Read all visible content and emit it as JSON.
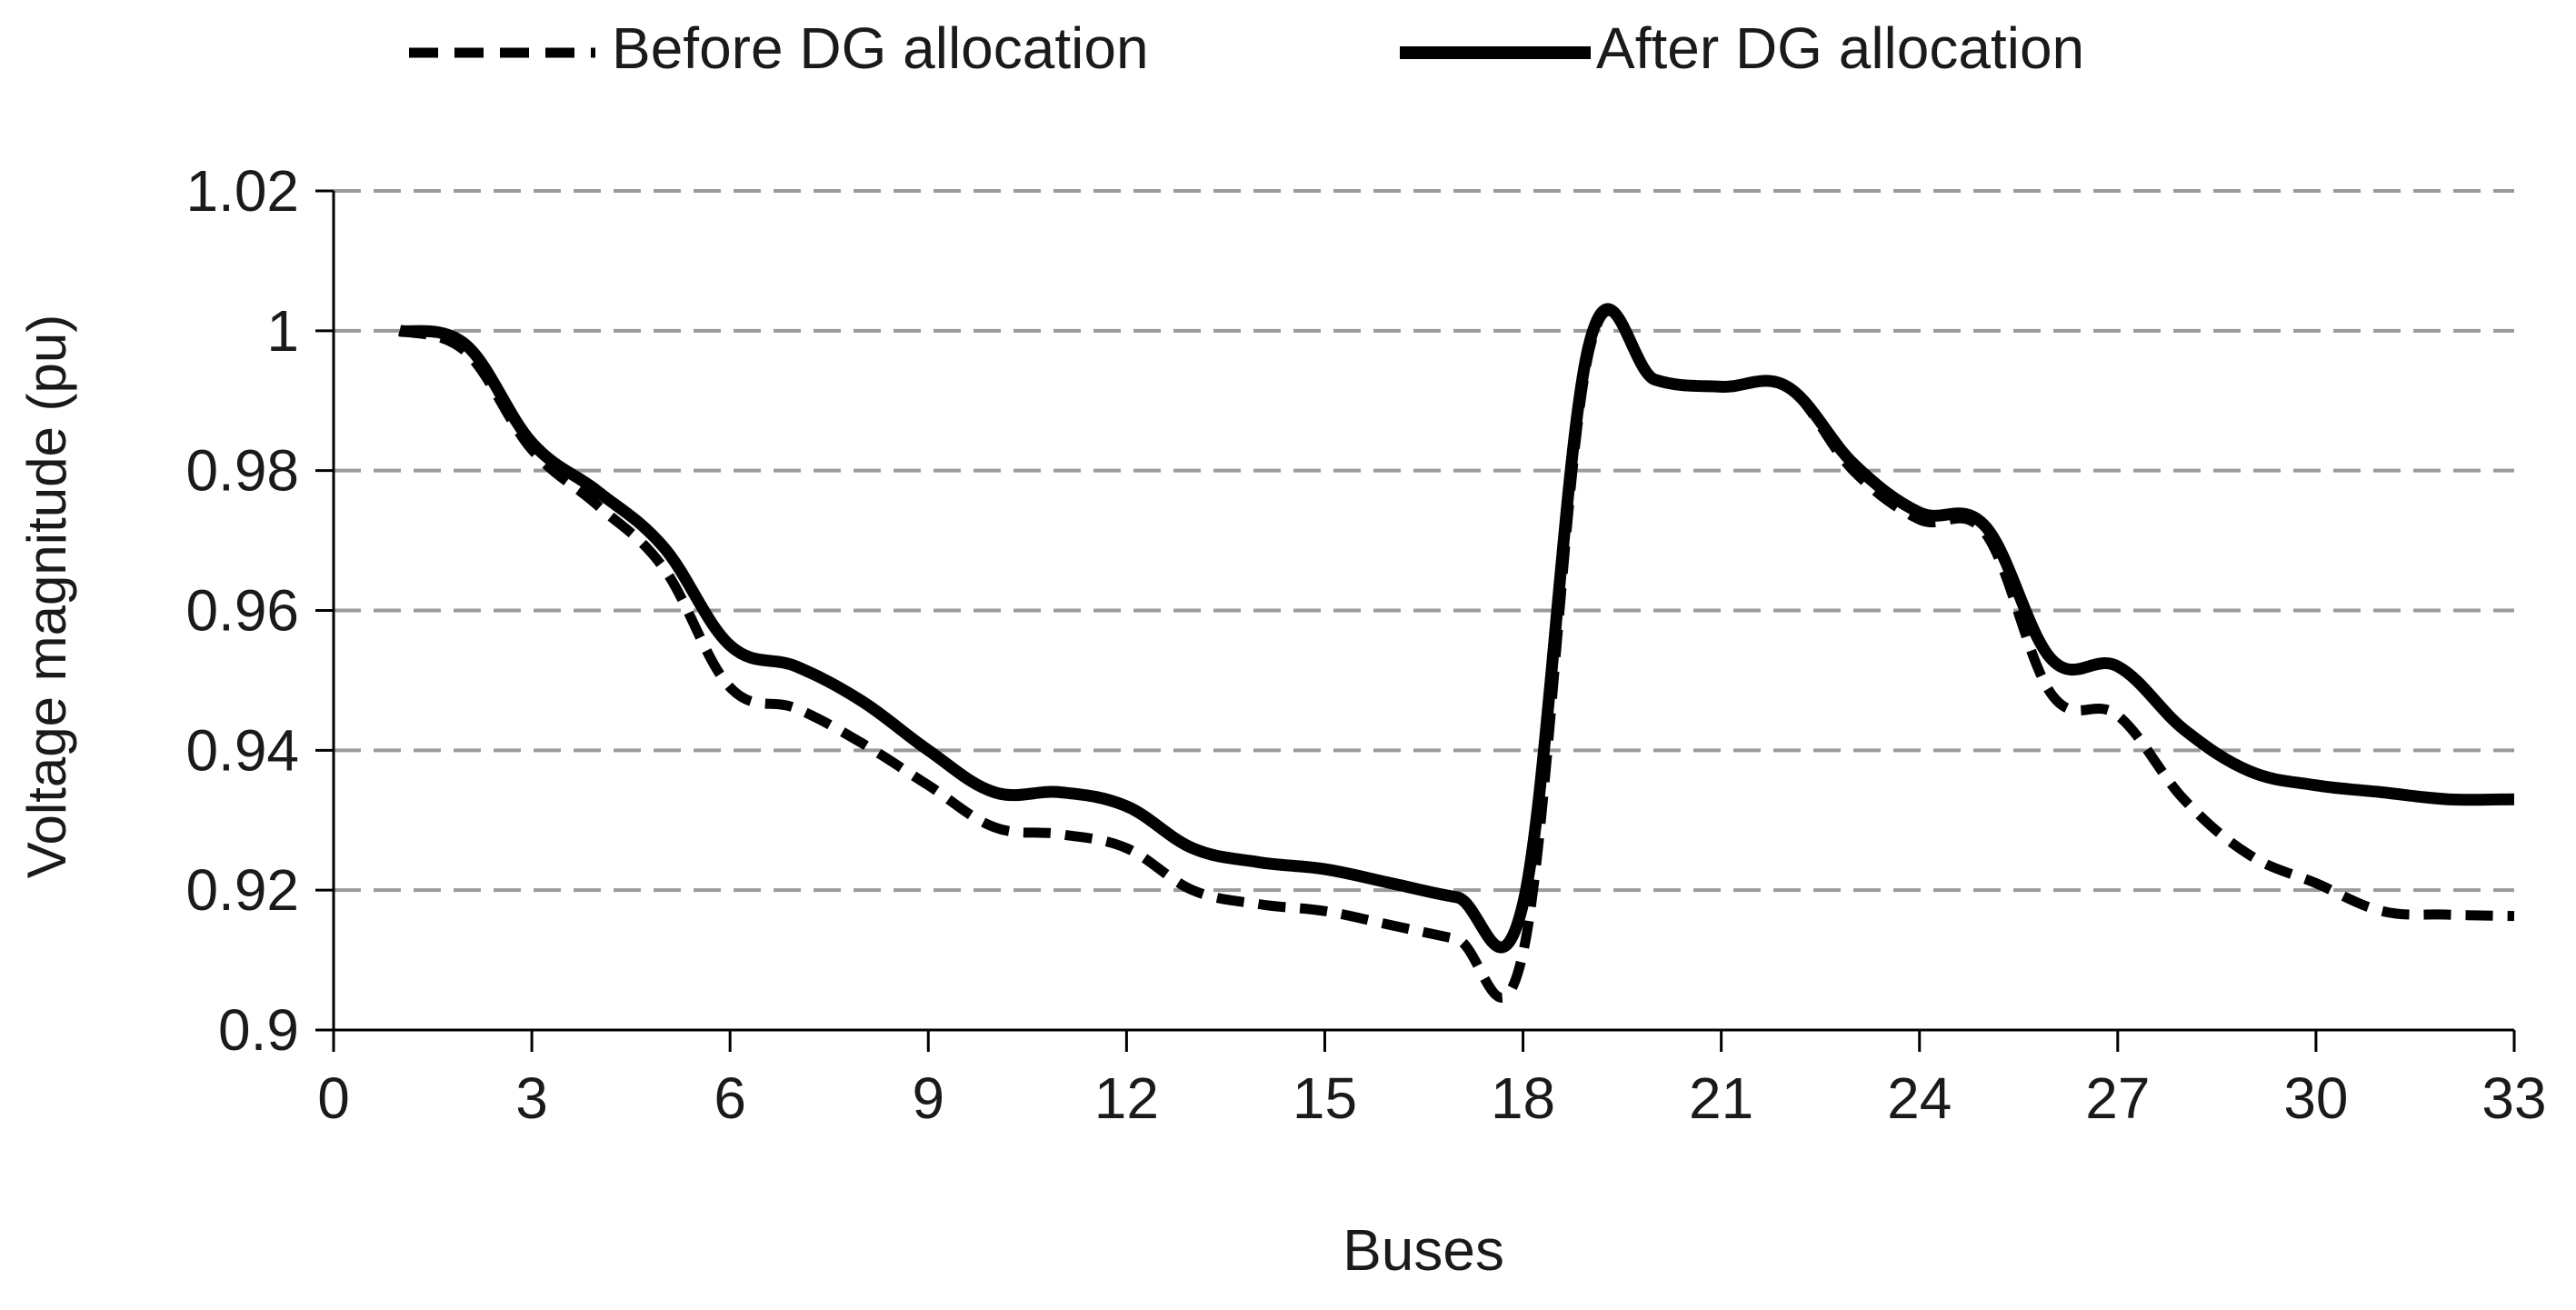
{
  "chart_data": {
    "type": "line",
    "title": "",
    "xlabel": "Buses",
    "ylabel": "Voltage magnitude (pu)",
    "xlim": [
      0,
      33
    ],
    "ylim": [
      0.9,
      1.02
    ],
    "xticks": [
      0,
      3,
      6,
      9,
      12,
      15,
      18,
      21,
      24,
      27,
      30,
      33
    ],
    "yticks": [
      0.9,
      0.92,
      0.94,
      0.96,
      0.98,
      1.0,
      1.02
    ],
    "ytick_labels": [
      "0.9",
      "0.92",
      "0.94",
      "0.96",
      "0.98",
      "1",
      "1.02"
    ],
    "grid": "horizontal-dashed",
    "legend_position": "top",
    "x": [
      1,
      2,
      3,
      4,
      5,
      6,
      7,
      8,
      9,
      10,
      11,
      12,
      13,
      14,
      15,
      16,
      17,
      18,
      19,
      20,
      21,
      22,
      23,
      24,
      25,
      26,
      27,
      28,
      29,
      30,
      31,
      32,
      33
    ],
    "series": [
      {
        "name": "Before DG allocation",
        "style": "dashed",
        "color": "#000000",
        "values": [
          1.0,
          0.997,
          0.983,
          0.975,
          0.966,
          0.949,
          0.946,
          0.941,
          0.935,
          0.929,
          0.928,
          0.926,
          0.92,
          0.918,
          0.917,
          0.915,
          0.913,
          0.911,
          0.997,
          0.993,
          0.992,
          0.992,
          0.98,
          0.973,
          0.971,
          0.948,
          0.945,
          0.933,
          0.925,
          0.921,
          0.917,
          0.9165,
          0.9163
        ]
      },
      {
        "name": "After DG allocation",
        "style": "solid",
        "color": "#000000",
        "values": [
          1.0,
          0.998,
          0.984,
          0.977,
          0.969,
          0.955,
          0.952,
          0.947,
          0.94,
          0.934,
          0.934,
          0.932,
          0.926,
          0.924,
          0.923,
          0.921,
          0.919,
          0.918,
          0.998,
          0.993,
          0.992,
          0.992,
          0.981,
          0.974,
          0.972,
          0.953,
          0.952,
          0.943,
          0.937,
          0.935,
          0.934,
          0.933,
          0.933
        ]
      }
    ]
  }
}
